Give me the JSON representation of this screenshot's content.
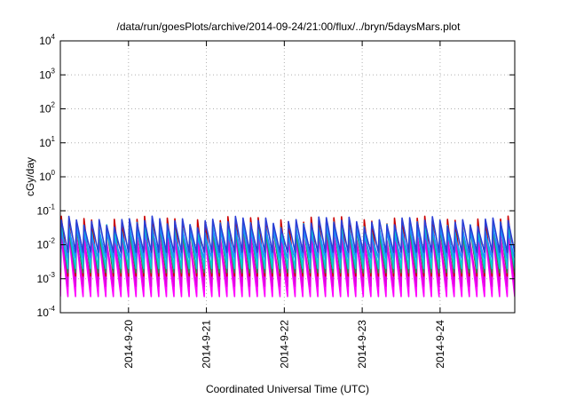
{
  "chart_data": {
    "type": "line",
    "title": "/data/run/goesPlots/archive/2014-09-24/21:00/flux/../bryn/5daysMars.plot",
    "xlabel": "Coordinated Universal Time (UTC)",
    "ylabel": "cGy/day",
    "y_scale": "log",
    "ylim": [
      0.0001,
      10000
    ],
    "y_ticks": [
      {
        "base": "10",
        "exp": "4",
        "value": 10000
      },
      {
        "base": "10",
        "exp": "3",
        "value": 1000
      },
      {
        "base": "10",
        "exp": "2",
        "value": 100
      },
      {
        "base": "10",
        "exp": "1",
        "value": 10
      },
      {
        "base": "10",
        "exp": "0",
        "value": 1
      },
      {
        "base": "10",
        "exp": "-1",
        "value": 0.1
      },
      {
        "base": "10",
        "exp": "-2",
        "value": 0.01
      },
      {
        "base": "10",
        "exp": "-3",
        "value": 0.001
      },
      {
        "base": "10",
        "exp": "-4",
        "value": 0.0001
      }
    ],
    "xlim": [
      "2014-09-19 03:00",
      "2014-09-24 23:00"
    ],
    "x_ticks": [
      "2014-9-20",
      "2014-9-21",
      "2014-9-22",
      "2014-9-23",
      "2014-9-24"
    ],
    "grid": true,
    "legend": "none",
    "cycle_count": 60,
    "series": [
      {
        "color": "#ff00ff",
        "peak": 0.015,
        "trough": 0.0003
      },
      {
        "color": "#e000e0",
        "peak": 0.02,
        "trough": 0.0006
      },
      {
        "color": "#cc0000",
        "peak": 0.05,
        "trough": 0.0012
      },
      {
        "color": "#2e8b57",
        "peak": 0.03,
        "trough": 0.0015
      },
      {
        "color": "#00ced1",
        "peak": 0.035,
        "trough": 0.002
      },
      {
        "color": "#1e90ff",
        "peak": 0.025,
        "trough": 0.004
      },
      {
        "color": "#2b3fd6",
        "peak": 0.05,
        "trough": 0.006
      }
    ]
  }
}
